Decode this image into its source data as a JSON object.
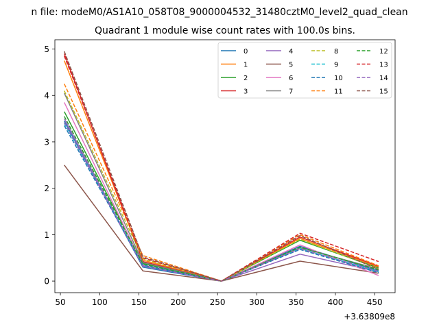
{
  "chart_data": {
    "type": "line",
    "suptitle": "n file: modeM0/AS1A10_058T08_9000004532_31480cztM0_level2_quad_clean",
    "title": "Quadrant 1 module wise count rates with 100.0s bins.",
    "xlabel": "",
    "ylabel": "",
    "x_offset_label": "+3.63809e8",
    "xlim": [
      43,
      476
    ],
    "ylim": [
      -0.25,
      5.2
    ],
    "x_ticks": [
      50,
      100,
      150,
      200,
      250,
      300,
      350,
      400,
      450
    ],
    "x_tick_labels": [
      "50",
      "100",
      "150",
      "200",
      "250",
      "300",
      "350",
      "400",
      "450"
    ],
    "y_ticks": [
      0,
      1,
      2,
      3,
      4,
      5
    ],
    "y_tick_labels": [
      "0",
      "1",
      "2",
      "3",
      "4",
      "5"
    ],
    "grid": false,
    "legend_position": "top-right",
    "legend_columns": 4,
    "x": [
      55,
      155,
      255,
      355,
      455
    ],
    "series": [
      {
        "name": "0",
        "color": "#1f77b4",
        "dash": "solid",
        "values": [
          3.45,
          0.3,
          0.0,
          0.75,
          0.22
        ]
      },
      {
        "name": "1",
        "color": "#ff7f0e",
        "dash": "solid",
        "values": [
          4.75,
          0.45,
          0.0,
          0.92,
          0.3
        ]
      },
      {
        "name": "2",
        "color": "#2ca02c",
        "dash": "solid",
        "values": [
          3.65,
          0.38,
          0.0,
          0.88,
          0.28
        ]
      },
      {
        "name": "3",
        "color": "#d62728",
        "dash": "solid",
        "values": [
          4.9,
          0.42,
          0.0,
          0.95,
          0.32
        ]
      },
      {
        "name": "4",
        "color": "#9467bd",
        "dash": "solid",
        "values": [
          3.5,
          0.33,
          0.0,
          0.58,
          0.2
        ]
      },
      {
        "name": "5",
        "color": "#8c564b",
        "dash": "solid",
        "values": [
          2.5,
          0.22,
          0.0,
          0.43,
          0.17
        ]
      },
      {
        "name": "6",
        "color": "#e377c2",
        "dash": "solid",
        "values": [
          3.85,
          0.35,
          0.0,
          0.78,
          0.12
        ]
      },
      {
        "name": "7",
        "color": "#7f7f7f",
        "dash": "solid",
        "values": [
          4.05,
          0.4,
          0.0,
          0.72,
          0.26
        ]
      },
      {
        "name": "8",
        "color": "#bcbd22",
        "dash": "dashed",
        "values": [
          4.1,
          0.48,
          0.0,
          0.9,
          0.27
        ]
      },
      {
        "name": "9",
        "color": "#17becf",
        "dash": "dashed",
        "values": [
          3.4,
          0.36,
          0.0,
          0.7,
          0.2
        ]
      },
      {
        "name": "10",
        "color": "#1f77b4",
        "dash": "dashed",
        "values": [
          3.35,
          0.34,
          0.0,
          0.68,
          0.18
        ]
      },
      {
        "name": "11",
        "color": "#ff7f0e",
        "dash": "dashed",
        "values": [
          4.25,
          0.55,
          0.0,
          1.0,
          0.33
        ]
      },
      {
        "name": "12",
        "color": "#2ca02c",
        "dash": "dashed",
        "values": [
          3.55,
          0.37,
          0.0,
          0.73,
          0.24
        ]
      },
      {
        "name": "13",
        "color": "#d62728",
        "dash": "dashed",
        "values": [
          4.85,
          0.5,
          0.0,
          1.03,
          0.42
        ]
      },
      {
        "name": "14",
        "color": "#9467bd",
        "dash": "dashed",
        "values": [
          3.42,
          0.32,
          0.0,
          0.7,
          0.21
        ]
      },
      {
        "name": "15",
        "color": "#8c564b",
        "dash": "dashed",
        "values": [
          4.95,
          0.52,
          0.0,
          0.98,
          0.25
        ]
      }
    ]
  }
}
